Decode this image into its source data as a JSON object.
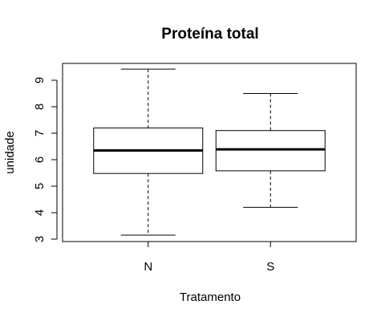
{
  "chart_data": {
    "type": "box",
    "title": "Proteína total",
    "xlabel": "Tratamento",
    "ylabel": "unidade",
    "ylim": [
      2.9,
      9.9
    ],
    "yticks": [
      3,
      4,
      5,
      6,
      7,
      8,
      9
    ],
    "categories": [
      "N",
      "S"
    ],
    "boxes": [
      {
        "category": "N",
        "min": 3.15,
        "q1": 5.48,
        "median": 6.35,
        "q3": 7.2,
        "max": 9.42
      },
      {
        "category": "S",
        "min": 4.2,
        "q1": 5.58,
        "median": 6.39,
        "q3": 7.1,
        "max": 8.5
      }
    ],
    "grid": false,
    "legend": "none"
  }
}
